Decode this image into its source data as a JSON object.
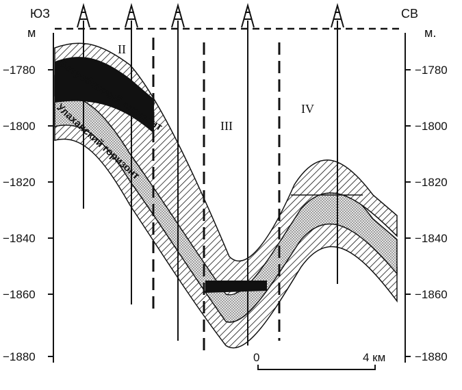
{
  "directions": {
    "left": "ЮЗ",
    "right": "СВ"
  },
  "units": {
    "left": "м",
    "right": "м."
  },
  "y_ticks": [
    "−1780",
    "−1800",
    "−1820",
    "−1840",
    "−1860",
    "−1880"
  ],
  "zones": [
    "II",
    "III",
    "IV"
  ],
  "horizons": {
    "upper": "Ботуобинский горизонт",
    "lower": "Улаханский горизонт"
  },
  "scale_bar": {
    "start": "0",
    "end": "4 км"
  },
  "wells": 5
}
